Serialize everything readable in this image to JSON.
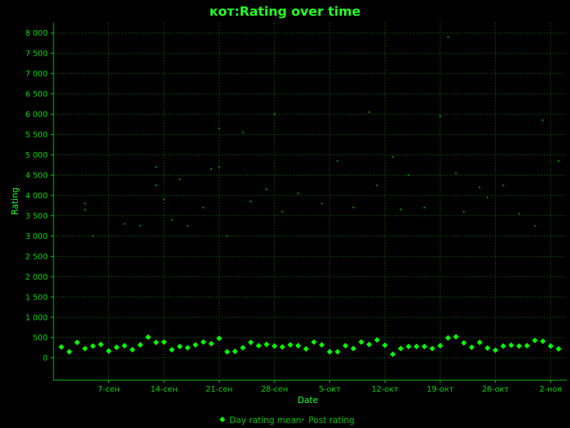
{
  "chart_data": {
    "type": "scatter",
    "title": "кот:Rating over time",
    "xlabel": "Date",
    "ylabel": "Rating",
    "x_range": [
      "2022-08-31",
      "2022-11-04"
    ],
    "ylim": [
      -550,
      8250
    ],
    "yticks": [
      0,
      500,
      1000,
      1500,
      2000,
      2500,
      3000,
      3500,
      4000,
      4500,
      5000,
      5500,
      6000,
      6500,
      7000,
      7500,
      8000
    ],
    "ytick_labels": [
      "0",
      "500",
      "1 000",
      "1 500",
      "2 000",
      "2 500",
      "3 000",
      "3 500",
      "4 000",
      "4 500",
      "5 000",
      "5 500",
      "6 000",
      "6 500",
      "7 000",
      "7 500",
      "8 000"
    ],
    "xticks": [
      "2022-09-07",
      "2022-09-14",
      "2022-09-21",
      "2022-09-28",
      "2022-10-05",
      "2022-10-12",
      "2022-10-19",
      "2022-10-26",
      "2022-11-02"
    ],
    "xtick_labels": [
      "7-сен",
      "14-сен",
      "21-сен",
      "28-сен",
      "5-окт",
      "12-окт",
      "19-окт",
      "26-окт",
      "2-ноя"
    ],
    "grid": true,
    "legend_position": "bottom",
    "colors": {
      "background": "#000000",
      "grid": "#0f4f0f",
      "text": "#00d400",
      "title": "#22ff22",
      "mean": "#00ff00",
      "post": "#009a00"
    },
    "series": [
      {
        "name": "Day rating mean",
        "marker": "diamond",
        "x": [
          "2022-09-01",
          "2022-09-02",
          "2022-09-03",
          "2022-09-04",
          "2022-09-05",
          "2022-09-06",
          "2022-09-07",
          "2022-09-08",
          "2022-09-09",
          "2022-09-10",
          "2022-09-11",
          "2022-09-12",
          "2022-09-13",
          "2022-09-14",
          "2022-09-15",
          "2022-09-16",
          "2022-09-17",
          "2022-09-18",
          "2022-09-19",
          "2022-09-20",
          "2022-09-21",
          "2022-09-22",
          "2022-09-23",
          "2022-09-24",
          "2022-09-25",
          "2022-09-26",
          "2022-09-27",
          "2022-09-28",
          "2022-09-29",
          "2022-09-30",
          "2022-10-01",
          "2022-10-02",
          "2022-10-03",
          "2022-10-04",
          "2022-10-05",
          "2022-10-06",
          "2022-10-07",
          "2022-10-08",
          "2022-10-09",
          "2022-10-10",
          "2022-10-11",
          "2022-10-12",
          "2022-10-13",
          "2022-10-14",
          "2022-10-15",
          "2022-10-16",
          "2022-10-17",
          "2022-10-18",
          "2022-10-19",
          "2022-10-20",
          "2022-10-21",
          "2022-10-22",
          "2022-10-23",
          "2022-10-24",
          "2022-10-25",
          "2022-10-26",
          "2022-10-27",
          "2022-10-28",
          "2022-10-29",
          "2022-10-30",
          "2022-10-31",
          "2022-11-01",
          "2022-11-02",
          "2022-11-03"
        ],
        "y": [
          270,
          150,
          380,
          230,
          290,
          330,
          170,
          260,
          300,
          200,
          320,
          510,
          380,
          390,
          200,
          280,
          250,
          320,
          390,
          350,
          480,
          150,
          160,
          250,
          380,
          300,
          330,
          290,
          270,
          320,
          300,
          220,
          390,
          320,
          150,
          150,
          300,
          230,
          390,
          330,
          440,
          310,
          90,
          230,
          280,
          280,
          280,
          230,
          300,
          490,
          520,
          370,
          260,
          380,
          240,
          190,
          290,
          310,
          290,
          300,
          430,
          410,
          290,
          220
        ]
      },
      {
        "name": "Post rating",
        "marker": "dot",
        "x": [
          "2022-09-04",
          "2022-09-04",
          "2022-09-05",
          "2022-09-09",
          "2022-09-11",
          "2022-09-13",
          "2022-09-13",
          "2022-09-14",
          "2022-09-15",
          "2022-09-16",
          "2022-09-17",
          "2022-09-19",
          "2022-09-20",
          "2022-09-21",
          "2022-09-21",
          "2022-09-22",
          "2022-09-24",
          "2022-09-25",
          "2022-09-27",
          "2022-09-28",
          "2022-09-29",
          "2022-10-01",
          "2022-10-04",
          "2022-10-06",
          "2022-10-08",
          "2022-10-10",
          "2022-10-11",
          "2022-10-13",
          "2022-10-14",
          "2022-10-15",
          "2022-10-17",
          "2022-10-19",
          "2022-10-20",
          "2022-10-21",
          "2022-10-22",
          "2022-10-24",
          "2022-10-25",
          "2022-10-27",
          "2022-10-29",
          "2022-10-31",
          "2022-11-01",
          "2022-11-03"
        ],
        "y": [
          3800,
          3650,
          3000,
          3300,
          3250,
          4700,
          4250,
          3900,
          3400,
          4400,
          3250,
          3700,
          4650,
          5650,
          4700,
          3000,
          5550,
          3850,
          4150,
          6000,
          3600,
          4050,
          3800,
          4850,
          3700,
          6050,
          4250,
          4950,
          3650,
          4500,
          3700,
          5950,
          7900,
          4550,
          3600,
          4200,
          3950,
          4250,
          3550,
          3250,
          5850,
          4850
        ]
      }
    ]
  }
}
